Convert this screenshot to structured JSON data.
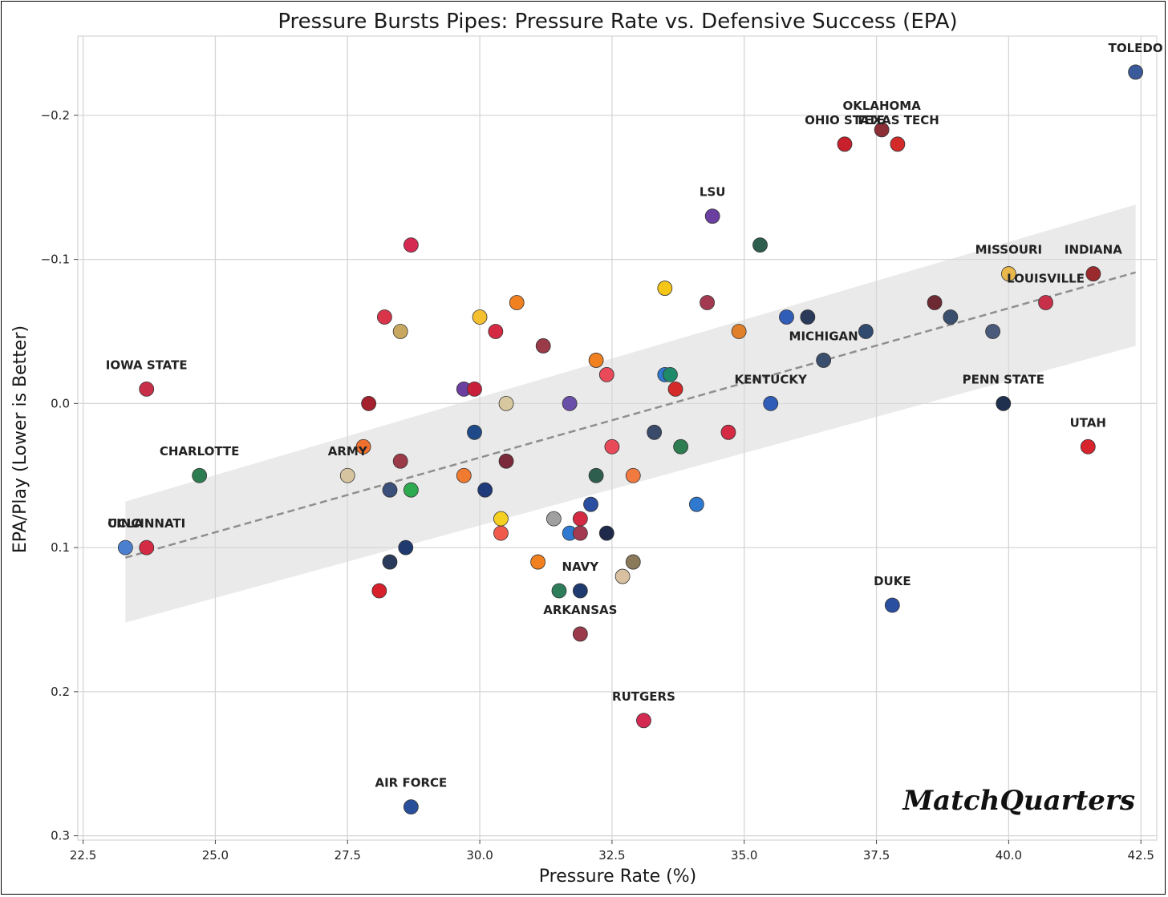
{
  "chart_data": {
    "type": "scatter",
    "title": "Pressure Bursts Pipes: Pressure Rate vs. Defensive Success (EPA)",
    "xlabel": "Pressure Rate (%)",
    "ylabel": "EPA/Play (Lower is Better)",
    "xlim": [
      22.4,
      42.8
    ],
    "ylim": [
      -0.255,
      0.303
    ],
    "y_inverted": true,
    "grid": true,
    "x_ticks": [
      22.5,
      25.0,
      27.5,
      30.0,
      32.5,
      35.0,
      37.5,
      40.0,
      42.5
    ],
    "x_tick_labels": [
      "22.5",
      "25.0",
      "27.5",
      "30.0",
      "32.5",
      "35.0",
      "37.5",
      "40.0",
      "42.5"
    ],
    "y_ticks": [
      -0.2,
      -0.1,
      0.0,
      0.1,
      0.2,
      0.3
    ],
    "y_tick_labels": [
      "−0.2",
      "−0.1",
      "0.0",
      "0.1",
      "0.2",
      "0.3"
    ],
    "trend_line": {
      "x": [
        23.3,
        42.4
      ],
      "y": [
        0.107,
        -0.091
      ],
      "band_x": [
        23.3,
        42.4
      ],
      "band_lower": [
        0.068,
        -0.138
      ],
      "band_upper": [
        0.152,
        -0.04
      ]
    },
    "points": [
      {
        "x": 42.4,
        "y": -0.23,
        "color": "#3a5a9a",
        "label": "TOLEDO"
      },
      {
        "x": 37.6,
        "y": -0.19,
        "color": "#8b2e36",
        "label": "OKLAHOMA"
      },
      {
        "x": 36.9,
        "y": -0.18,
        "color": "#c8202c",
        "label": "OHIO STATE"
      },
      {
        "x": 37.9,
        "y": -0.18,
        "color": "#d32a2a",
        "label": "TEXAS TECH"
      },
      {
        "x": 34.4,
        "y": -0.13,
        "color": "#6b3fa0",
        "label": "LSU"
      },
      {
        "x": 40.0,
        "y": -0.09,
        "color": "#e8b84a",
        "label": "MISSOURI"
      },
      {
        "x": 41.6,
        "y": -0.09,
        "color": "#9b2a2f",
        "label": "INDIANA"
      },
      {
        "x": 40.7,
        "y": -0.07,
        "color": "#c8304a",
        "label": "LOUISVILLE"
      },
      {
        "x": 36.5,
        "y": -0.03,
        "color": "#3a4f6e",
        "label": "MICHIGAN"
      },
      {
        "x": 35.5,
        "y": 0.0,
        "color": "#2f5db8",
        "label": "KENTUCKY"
      },
      {
        "x": 39.9,
        "y": 0.0,
        "color": "#1f2f4e",
        "label": "PENN STATE"
      },
      {
        "x": 41.5,
        "y": 0.03,
        "color": "#d8242c",
        "label": "UTAH"
      },
      {
        "x": 23.7,
        "y": -0.01,
        "color": "#c8304a",
        "label": "IOWA STATE"
      },
      {
        "x": 24.7,
        "y": 0.05,
        "color": "#2e7d50",
        "label": "CHARLOTTE"
      },
      {
        "x": 27.5,
        "y": 0.05,
        "color": "#d6c4a0",
        "label": "ARMY"
      },
      {
        "x": 23.3,
        "y": 0.1,
        "color": "#4a7fd0",
        "label": "UCLA"
      },
      {
        "x": 23.7,
        "y": 0.1,
        "color": "#d42a44",
        "label": "CINCINNATI"
      },
      {
        "x": 31.9,
        "y": 0.13,
        "color": "#1f3a6e",
        "label": "NAVY"
      },
      {
        "x": 31.9,
        "y": 0.16,
        "color": "#9b3a4a",
        "label": "ARKANSAS"
      },
      {
        "x": 37.8,
        "y": 0.14,
        "color": "#2a4fa0",
        "label": "DUKE"
      },
      {
        "x": 33.1,
        "y": 0.22,
        "color": "#d42a52",
        "label": "RUTGERS"
      },
      {
        "x": 28.7,
        "y": 0.28,
        "color": "#2a4f9a",
        "label": "AIR FORCE"
      },
      {
        "x": 28.7,
        "y": -0.11,
        "color": "#d42a52",
        "label": ""
      },
      {
        "x": 35.3,
        "y": -0.11,
        "color": "#2e5e4e",
        "label": ""
      },
      {
        "x": 33.5,
        "y": -0.08,
        "color": "#f5c518",
        "label": ""
      },
      {
        "x": 30.7,
        "y": -0.07,
        "color": "#f08020",
        "label": ""
      },
      {
        "x": 34.3,
        "y": -0.07,
        "color": "#a33a52",
        "label": ""
      },
      {
        "x": 38.6,
        "y": -0.07,
        "color": "#6e2a32",
        "label": ""
      },
      {
        "x": 28.2,
        "y": -0.06,
        "color": "#d8344a",
        "label": ""
      },
      {
        "x": 30.0,
        "y": -0.06,
        "color": "#f5c030",
        "label": ""
      },
      {
        "x": 35.8,
        "y": -0.06,
        "color": "#2f5db8",
        "label": ""
      },
      {
        "x": 36.2,
        "y": -0.06,
        "color": "#2a3a5a",
        "label": ""
      },
      {
        "x": 38.9,
        "y": -0.06,
        "color": "#3a4f6e",
        "label": ""
      },
      {
        "x": 28.5,
        "y": -0.05,
        "color": "#c8a860",
        "label": ""
      },
      {
        "x": 30.3,
        "y": -0.05,
        "color": "#d42a44",
        "label": ""
      },
      {
        "x": 34.9,
        "y": -0.05,
        "color": "#e0802a",
        "label": ""
      },
      {
        "x": 37.3,
        "y": -0.05,
        "color": "#2f4a6e",
        "label": ""
      },
      {
        "x": 39.7,
        "y": -0.05,
        "color": "#4a5a7a",
        "label": ""
      },
      {
        "x": 31.2,
        "y": -0.04,
        "color": "#9b3a48",
        "label": ""
      },
      {
        "x": 32.2,
        "y": -0.03,
        "color": "#f08020",
        "label": ""
      },
      {
        "x": 32.4,
        "y": -0.02,
        "color": "#e84a5a",
        "label": ""
      },
      {
        "x": 33.5,
        "y": -0.02,
        "color": "#2f7ad0",
        "label": ""
      },
      {
        "x": 33.6,
        "y": -0.02,
        "color": "#1f8a6a",
        "label": ""
      },
      {
        "x": 29.7,
        "y": -0.01,
        "color": "#6b3fa0",
        "label": ""
      },
      {
        "x": 29.9,
        "y": -0.01,
        "color": "#c8203a",
        "label": ""
      },
      {
        "x": 33.7,
        "y": -0.01,
        "color": "#d42a2a",
        "label": ""
      },
      {
        "x": 27.9,
        "y": 0.0,
        "color": "#a3202c",
        "label": ""
      },
      {
        "x": 30.5,
        "y": 0.0,
        "color": "#d8c8a0",
        "label": ""
      },
      {
        "x": 31.7,
        "y": 0.0,
        "color": "#6a4fa8",
        "label": ""
      },
      {
        "x": 29.9,
        "y": 0.02,
        "color": "#1f4a8a",
        "label": ""
      },
      {
        "x": 33.3,
        "y": 0.02,
        "color": "#3a4a6a",
        "label": ""
      },
      {
        "x": 34.7,
        "y": 0.02,
        "color": "#d42a44",
        "label": ""
      },
      {
        "x": 27.8,
        "y": 0.03,
        "color": "#f07030",
        "label": ""
      },
      {
        "x": 32.5,
        "y": 0.03,
        "color": "#e84a5a",
        "label": ""
      },
      {
        "x": 33.8,
        "y": 0.03,
        "color": "#2e7d50",
        "label": ""
      },
      {
        "x": 28.5,
        "y": 0.04,
        "color": "#9b3a48",
        "label": ""
      },
      {
        "x": 30.5,
        "y": 0.04,
        "color": "#7a2a3a",
        "label": ""
      },
      {
        "x": 29.7,
        "y": 0.05,
        "color": "#f07a30",
        "label": ""
      },
      {
        "x": 32.2,
        "y": 0.05,
        "color": "#2e5e4e",
        "label": ""
      },
      {
        "x": 32.9,
        "y": 0.05,
        "color": "#f07a40",
        "label": ""
      },
      {
        "x": 28.3,
        "y": 0.06,
        "color": "#3a4f7a",
        "label": ""
      },
      {
        "x": 28.7,
        "y": 0.06,
        "color": "#2eaa50",
        "label": ""
      },
      {
        "x": 30.1,
        "y": 0.06,
        "color": "#1f3a7a",
        "label": ""
      },
      {
        "x": 32.1,
        "y": 0.07,
        "color": "#2a4fa0",
        "label": ""
      },
      {
        "x": 34.1,
        "y": 0.07,
        "color": "#2f7ad0",
        "label": ""
      },
      {
        "x": 30.4,
        "y": 0.08,
        "color": "#f5d020",
        "label": ""
      },
      {
        "x": 31.4,
        "y": 0.08,
        "color": "#a0a0a0",
        "label": ""
      },
      {
        "x": 31.9,
        "y": 0.08,
        "color": "#d42a44",
        "label": ""
      },
      {
        "x": 30.4,
        "y": 0.09,
        "color": "#f05a4a",
        "label": ""
      },
      {
        "x": 31.7,
        "y": 0.09,
        "color": "#2f7ad0",
        "label": ""
      },
      {
        "x": 31.9,
        "y": 0.09,
        "color": "#a33a52",
        "label": ""
      },
      {
        "x": 32.4,
        "y": 0.09,
        "color": "#1f2a4a",
        "label": ""
      },
      {
        "x": 28.6,
        "y": 0.1,
        "color": "#1f3a6e",
        "label": ""
      },
      {
        "x": 28.3,
        "y": 0.11,
        "color": "#2a3a5a",
        "label": ""
      },
      {
        "x": 31.1,
        "y": 0.11,
        "color": "#f08020",
        "label": ""
      },
      {
        "x": 32.9,
        "y": 0.11,
        "color": "#8a7a5a",
        "label": ""
      },
      {
        "x": 32.7,
        "y": 0.12,
        "color": "#d8c0a0",
        "label": ""
      },
      {
        "x": 31.5,
        "y": 0.13,
        "color": "#2e7d5a",
        "label": ""
      },
      {
        "x": 28.1,
        "y": 0.13,
        "color": "#d8202c",
        "label": ""
      }
    ]
  },
  "watermark": "MatchQuarters"
}
